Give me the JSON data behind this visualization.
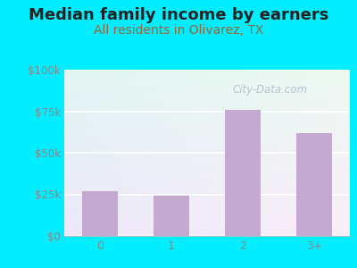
{
  "title": "Median family income by earners",
  "subtitle": "All residents in Olivarez, TX",
  "categories": [
    "0",
    "1",
    "2",
    "3+"
  ],
  "values": [
    27000,
    24000,
    76000,
    62000
  ],
  "bar_color": "#c4aad0",
  "title_fontsize": 13,
  "subtitle_fontsize": 10,
  "subtitle_color": "#996633",
  "title_color": "#222222",
  "ylim": [
    0,
    100000
  ],
  "yticks": [
    0,
    25000,
    50000,
    75000,
    100000
  ],
  "ytick_labels": [
    "$0",
    "$25k",
    "$50k",
    "$75k",
    "$100k"
  ],
  "background_outer": "#00eeff",
  "plot_bg_topleft": "#d8eedd",
  "plot_bg_topright": "#eef5ee",
  "plot_bg_bottom": "#f8f8f0",
  "watermark": "City-Data.com",
  "watermark_color": "#aabbcc",
  "grid_color": "#ccddcc",
  "tick_color": "#888888"
}
